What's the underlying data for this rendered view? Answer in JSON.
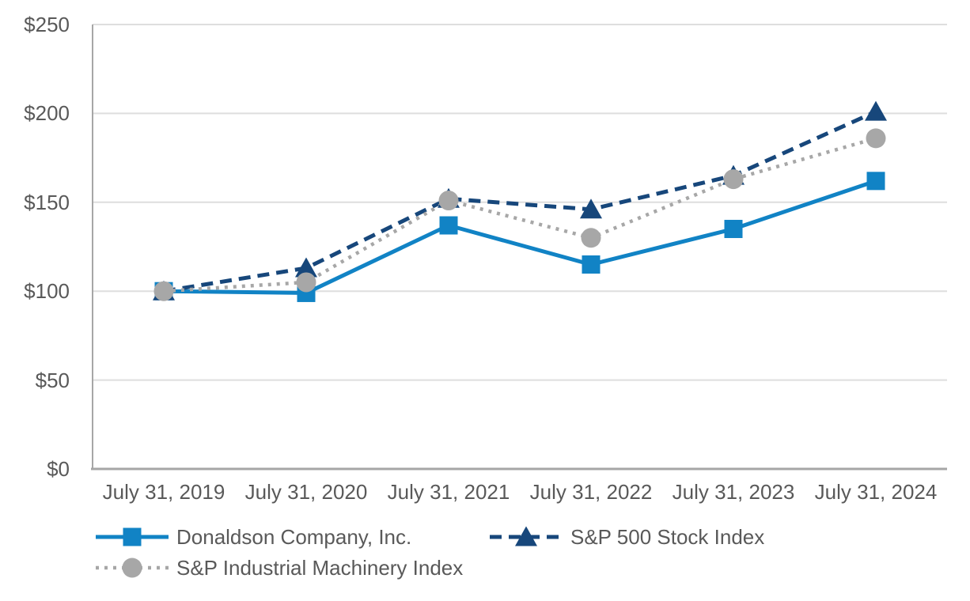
{
  "chart_data": {
    "type": "line",
    "x_categories": [
      "July 31, 2019",
      "July 31, 2020",
      "July 31, 2021",
      "July 31, 2022",
      "July 31, 2023",
      "July 31, 2024"
    ],
    "y_ticks": [
      "$0",
      "$50",
      "$100",
      "$150",
      "$200",
      "$250"
    ],
    "ylim": [
      0,
      250
    ],
    "grid": "horizontal",
    "legend_position": "bottom-left",
    "series": [
      {
        "name": "Donaldson Company, Inc.",
        "color": "#1183C5",
        "marker": "square",
        "line_style": "solid",
        "values": [
          100,
          99,
          137,
          115,
          135,
          162
        ]
      },
      {
        "name": "S&P 500 Stock Index",
        "color": "#17477B",
        "marker": "triangle",
        "line_style": "dashed",
        "values": [
          100,
          113,
          152,
          146,
          165,
          201
        ]
      },
      {
        "name": "S&P Industrial Machinery Index",
        "color": "#A7A7A7",
        "marker": "circle",
        "line_style": "dotted",
        "values": [
          100,
          105,
          151,
          130,
          163,
          186
        ]
      }
    ],
    "colors": {
      "text": "#595959",
      "gridline": "#DEDEDE",
      "axis": "#A6A6A6",
      "background": "#FFFFFF"
    }
  }
}
